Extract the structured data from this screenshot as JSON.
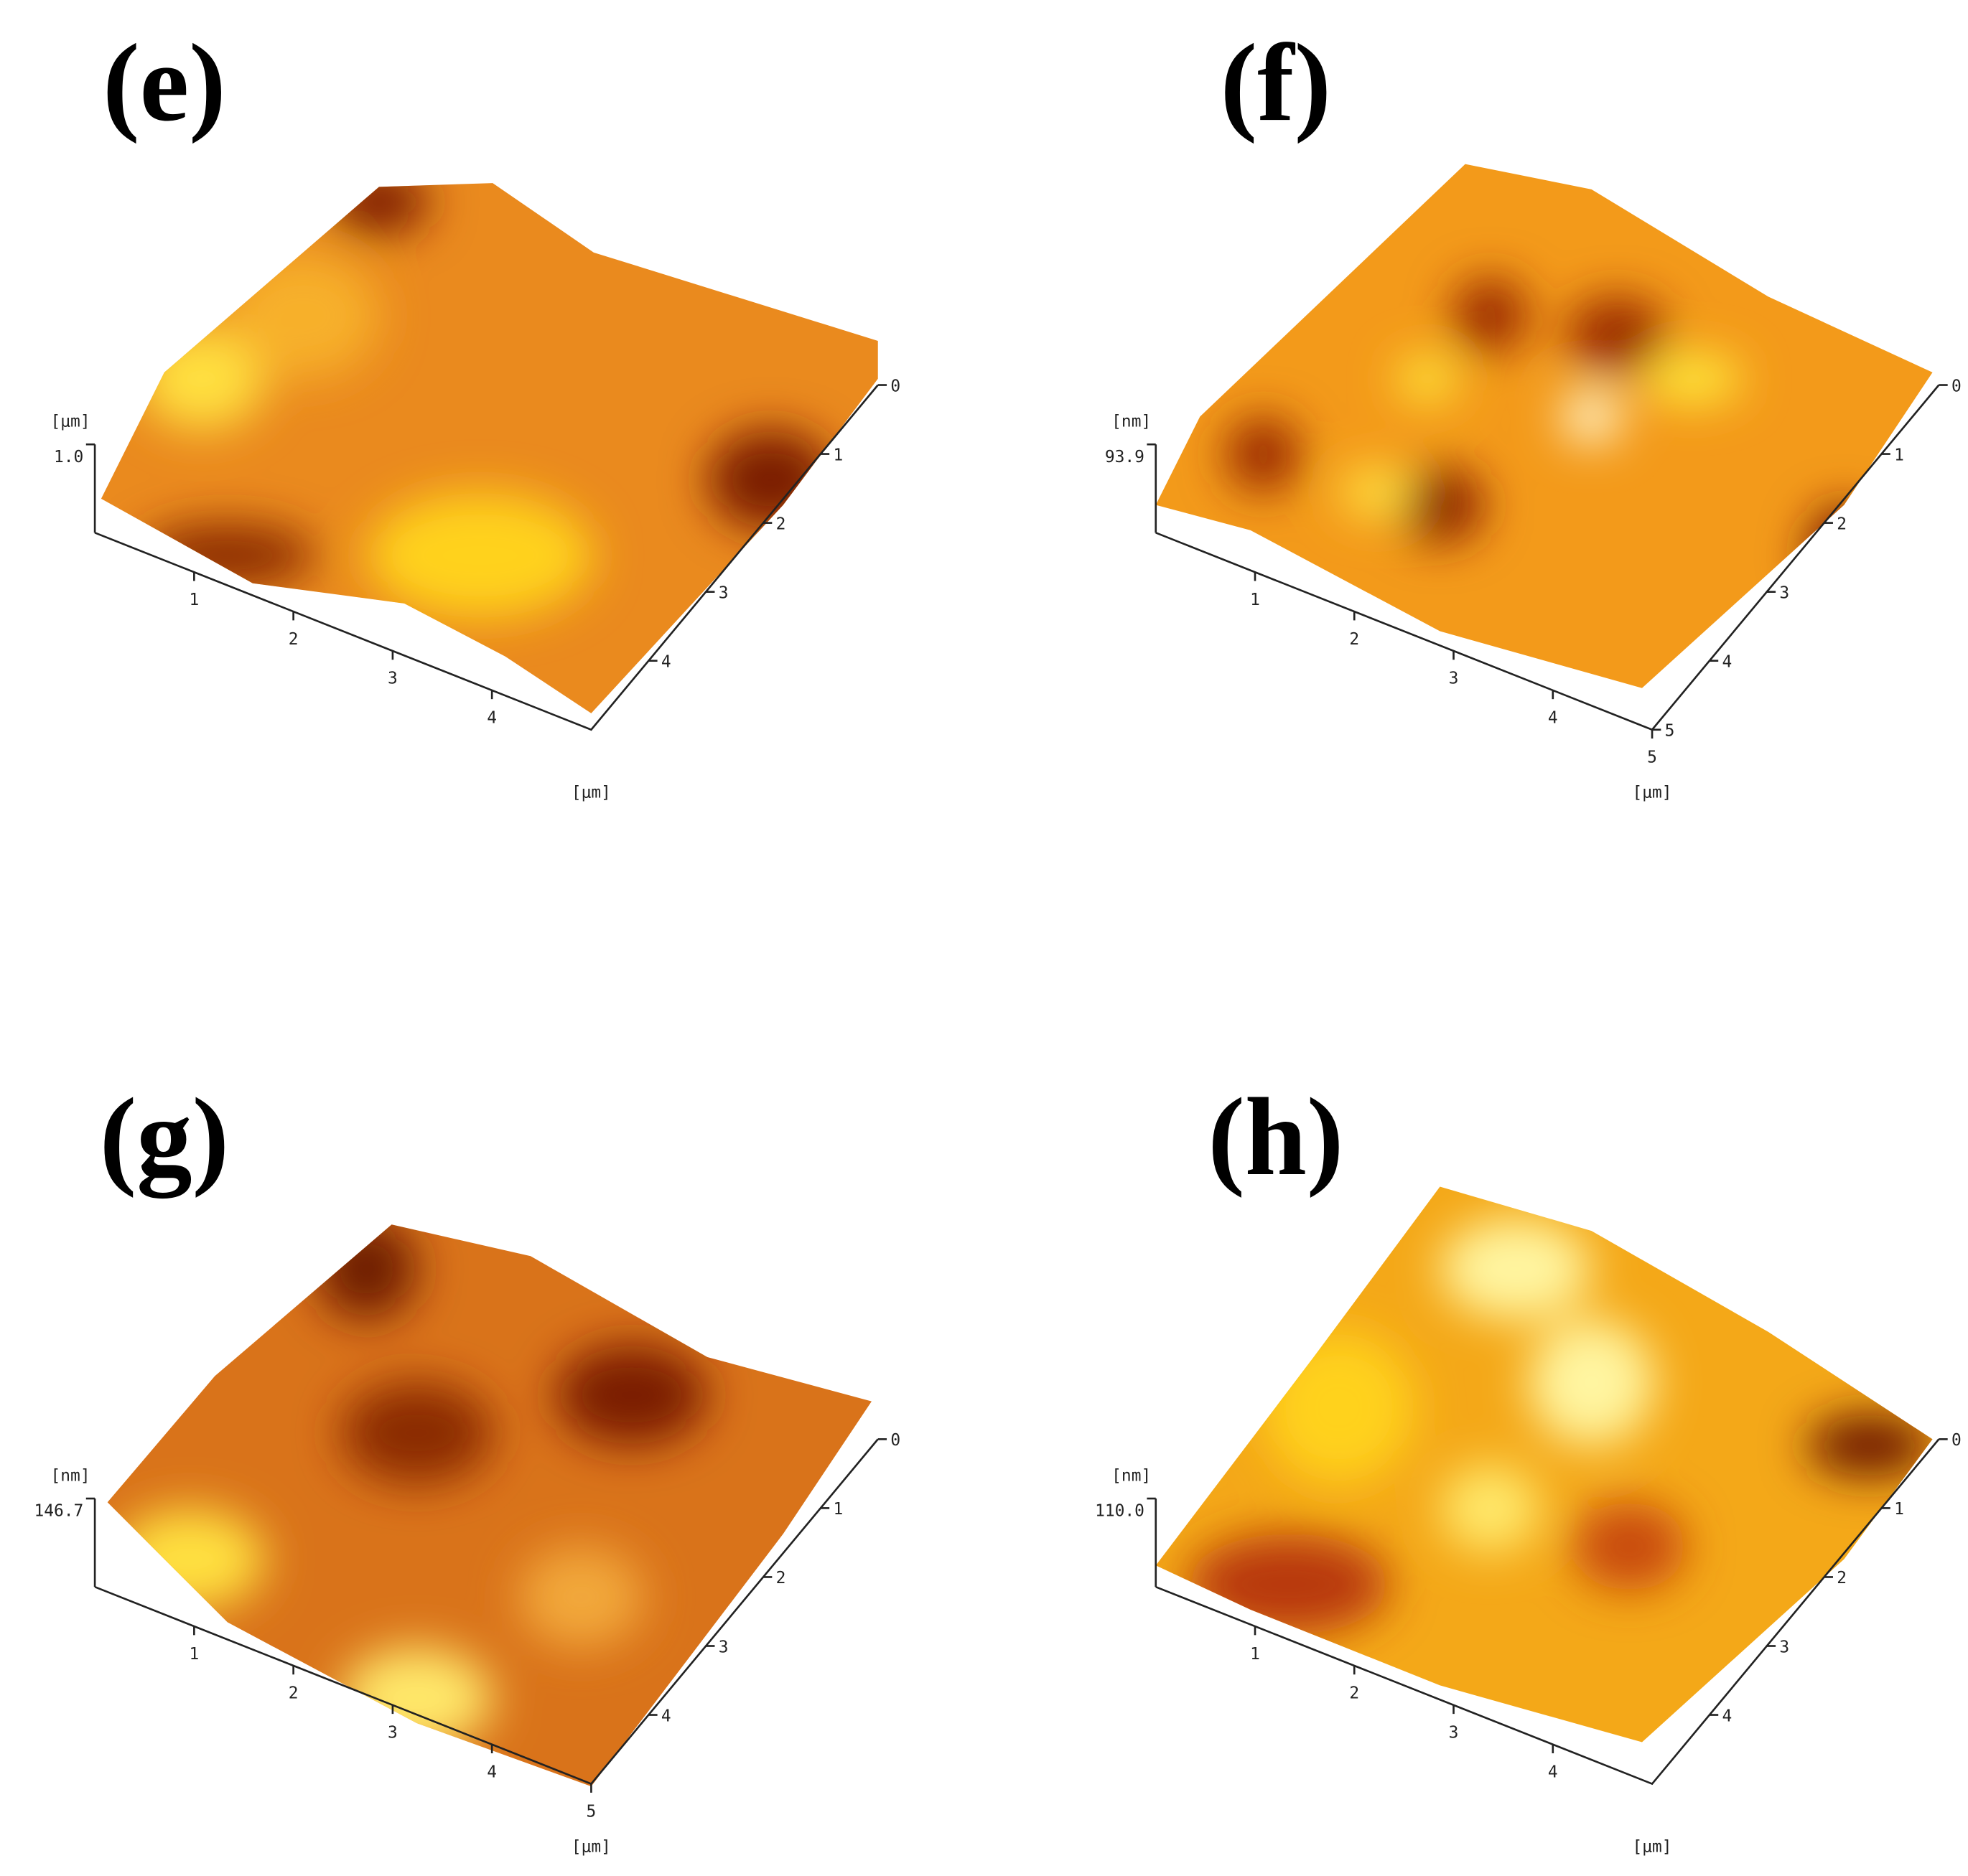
{
  "panels": [
    {
      "label": "(e)",
      "z_unit": "[μm]",
      "z_max": "1.0",
      "x_ticks": [
        "1",
        "2",
        "3",
        "4"
      ],
      "y_ticks": [
        "0",
        "1",
        "2",
        "3",
        "4"
      ],
      "xy_unit": "[μm]"
    },
    {
      "label": "(f)",
      "z_unit": "[nm]",
      "z_max": "93.9",
      "x_ticks": [
        "1",
        "2",
        "3",
        "4",
        "5"
      ],
      "y_ticks": [
        "0",
        "1",
        "2",
        "3",
        "4",
        "5"
      ],
      "xy_unit": "[μm]"
    },
    {
      "label": "(g)",
      "z_unit": "[nm]",
      "z_max": "146.7",
      "x_ticks": [
        "1",
        "2",
        "3",
        "4",
        "5"
      ],
      "y_ticks": [
        "0",
        "1",
        "2",
        "3",
        "4"
      ],
      "xy_unit": "[μm]"
    },
    {
      "label": "(h)",
      "z_unit": "[nm]",
      "z_max": "110.0",
      "x_ticks": [
        "1",
        "2",
        "3",
        "4"
      ],
      "y_ticks": [
        "0",
        "1",
        "2",
        "3",
        "4"
      ],
      "xy_unit": "[μm]"
    }
  ]
}
